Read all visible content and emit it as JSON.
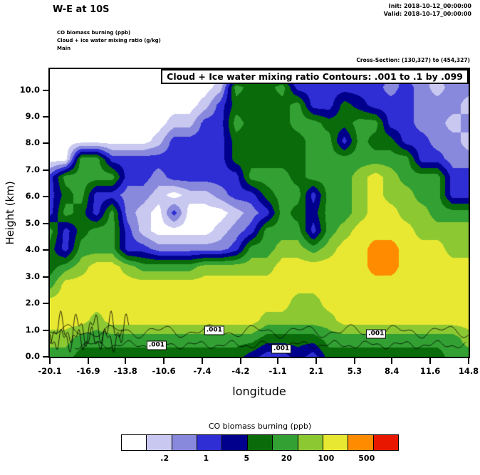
{
  "header": {
    "title": "W-E at 10S",
    "init_label": "Init: 2018-10-12_00:00:00",
    "valid_label": "Valid: 2018-10-17_00:00:00",
    "info_lines": [
      "CO biomass burning   (ppb)",
      "Cloud + ice water mixing ratio   (g/kg)",
      "Main"
    ],
    "cross_section": "Cross-Section: (130,327) to (454,327)"
  },
  "chart_data": {
    "type": "heatmap",
    "title": "Cloud + Ice water mixing ratio Contours: .001 to .1 by .099",
    "xlabel": "longitude",
    "ylabel": "Height (km)",
    "xlim": [
      -20.1,
      14.8
    ],
    "ylim": [
      0,
      10.79
    ],
    "x_ticks": [
      "-20.1",
      "-16.9",
      "-13.8",
      "-10.6",
      "-7.4",
      "-4.2",
      "-1.1",
      "2.1",
      "5.3",
      "8.4",
      "11.6",
      "14.8"
    ],
    "x_tick_values": [
      -20.1,
      -16.9,
      -13.8,
      -10.6,
      -7.4,
      -4.2,
      -1.1,
      2.1,
      5.3,
      8.4,
      11.6,
      14.8
    ],
    "y_ticks": [
      "0.0",
      "1.0",
      "2.0",
      "3.0",
      "4.0",
      "5.0",
      "6.0",
      "7.0",
      "8.0",
      "9.0",
      "10.0"
    ],
    "y_tick_values": [
      0,
      1,
      2,
      3,
      4,
      5,
      6,
      7,
      8,
      9,
      10
    ],
    "palette": [
      "#ffffff",
      "#c8c8f0",
      "#8888dc",
      "#2e2ed4",
      "#00008c",
      "#0a6b0a",
      "#32a032",
      "#8cc832",
      "#e8e832",
      "#ff8c00",
      "#e81800"
    ],
    "grid": {
      "note": "CO biomass burning field as palette level indices; rows bottom-up from 0 km to ~10.6 km, cols from lon -20.1 to 14.8",
      "rows": 17,
      "cols": 28,
      "values": [
        [
          6,
          6,
          5,
          5,
          5,
          5,
          5,
          5,
          5,
          5,
          5,
          5,
          5,
          4,
          3,
          3,
          4,
          3,
          5,
          5,
          5,
          5,
          5,
          5,
          5,
          5,
          6,
          6
        ],
        [
          7,
          7,
          6,
          6,
          6,
          6,
          6,
          6,
          6,
          6,
          6,
          6,
          6,
          6,
          5,
          5,
          5,
          5,
          6,
          6,
          6,
          6,
          6,
          6,
          6,
          6,
          6,
          7
        ],
        [
          8,
          8,
          8,
          7,
          8,
          8,
          8,
          8,
          8,
          8,
          8,
          8,
          8,
          8,
          7,
          7,
          7,
          7,
          7,
          8,
          8,
          8,
          8,
          8,
          8,
          8,
          8,
          8
        ],
        [
          8,
          8,
          8,
          8,
          8,
          8,
          8,
          8,
          8,
          8,
          8,
          8,
          8,
          8,
          8,
          8,
          7,
          7,
          8,
          8,
          8,
          8,
          8,
          8,
          8,
          8,
          8,
          8
        ],
        [
          6,
          8,
          8,
          8,
          8,
          8,
          8,
          8,
          8,
          8,
          8,
          8,
          8,
          8,
          8,
          8,
          8,
          8,
          8,
          8,
          8,
          8,
          8,
          8,
          8,
          8,
          8,
          8
        ],
        [
          5,
          6,
          7,
          8,
          8,
          7,
          6,
          6,
          6,
          6,
          7,
          7,
          7,
          7,
          7,
          8,
          8,
          8,
          8,
          8,
          8,
          9,
          9,
          8,
          8,
          8,
          8,
          8
        ],
        [
          5,
          3,
          6,
          6,
          6,
          3,
          3,
          2,
          2,
          2,
          2,
          2,
          3,
          6,
          6,
          7,
          7,
          6,
          7,
          8,
          8,
          9,
          9,
          8,
          8,
          8,
          7,
          7
        ],
        [
          6,
          3,
          5,
          6,
          6,
          3,
          1,
          0,
          0,
          0,
          0,
          1,
          2,
          3,
          6,
          6,
          6,
          3,
          6,
          7,
          8,
          8,
          8,
          8,
          7,
          7,
          7,
          7
        ],
        [
          3,
          6,
          5,
          3,
          6,
          2,
          1,
          0,
          3,
          0,
          0,
          0,
          1,
          2,
          3,
          6,
          5,
          4,
          6,
          6,
          7,
          8,
          8,
          7,
          7,
          6,
          6,
          6
        ],
        [
          3,
          5,
          6,
          3,
          3,
          2,
          2,
          1,
          0,
          1,
          1,
          2,
          3,
          3,
          5,
          6,
          6,
          3,
          6,
          6,
          7,
          8,
          7,
          7,
          6,
          6,
          3,
          3
        ],
        [
          3,
          6,
          6,
          6,
          6,
          3,
          3,
          2,
          3,
          3,
          3,
          3,
          3,
          6,
          6,
          6,
          5,
          6,
          6,
          6,
          7,
          8,
          7,
          6,
          6,
          6,
          3,
          3
        ],
        [
          0,
          0,
          6,
          6,
          3,
          3,
          3,
          3,
          3,
          3,
          3,
          3,
          5,
          5,
          5,
          5,
          5,
          6,
          6,
          6,
          6,
          6,
          6,
          6,
          3,
          3,
          2,
          2
        ],
        [
          0,
          0,
          0,
          0,
          0,
          0,
          0,
          1,
          3,
          3,
          3,
          3,
          5,
          5,
          5,
          5,
          5,
          6,
          6,
          3,
          6,
          5,
          5,
          3,
          3,
          2,
          2,
          1
        ],
        [
          0,
          0,
          0,
          0,
          0,
          0,
          0,
          0,
          1,
          1,
          3,
          3,
          6,
          5,
          5,
          5,
          6,
          6,
          5,
          5,
          6,
          6,
          3,
          3,
          2,
          2,
          1,
          2
        ],
        [
          0,
          0,
          0,
          0,
          0,
          0,
          0,
          0,
          0,
          0,
          1,
          3,
          5,
          5,
          5,
          5,
          6,
          3,
          3,
          5,
          4,
          3,
          3,
          3,
          2,
          2,
          2,
          1
        ],
        [
          0,
          0,
          0,
          0,
          0,
          0,
          0,
          0,
          0,
          0,
          0,
          1,
          6,
          5,
          5,
          6,
          3,
          3,
          3,
          3,
          3,
          3,
          2,
          3,
          2,
          1,
          2,
          2
        ],
        [
          0,
          0,
          0,
          0,
          0,
          0,
          0,
          0,
          0,
          0,
          0,
          0,
          1,
          6,
          3,
          3,
          1,
          3,
          3,
          3,
          2,
          3,
          3,
          2,
          1,
          2,
          2,
          3
        ]
      ]
    },
    "contour_lines": [
      {
        "km": 0.95,
        "x_start": -20.1,
        "x_end": 14.8,
        "amp": 0.16,
        "freq": 1.6
      },
      {
        "km": 0.45,
        "x_start": -18.0,
        "x_end": 14.6,
        "amp": 0.1,
        "freq": 2.2
      },
      {
        "km": 1.05,
        "x_start": -20.1,
        "x_end": -13.5,
        "amp": 0.42,
        "freq": 4.5
      },
      {
        "km": 0.65,
        "x_start": -20.1,
        "x_end": -14.0,
        "amp": 0.3,
        "freq": 5.2
      }
    ],
    "contour_labels": [
      {
        "text": ".001",
        "lon": -11.2,
        "km": 0.42
      },
      {
        "text": ".001",
        "lon": -6.4,
        "km": 1.0
      },
      {
        "text": ".001",
        "lon": -0.8,
        "km": 0.3
      },
      {
        "text": ".001",
        "lon": 7.1,
        "km": 0.85
      }
    ],
    "colorbar": {
      "title": "CO biomass burning  (ppb)",
      "colors": [
        "#ffffff",
        "#c8c8f0",
        "#8888dc",
        "#2e2ed4",
        "#00008c",
        "#0a6b0a",
        "#32a032",
        "#8cc832",
        "#e8e832",
        "#ff8c00",
        "#e81800"
      ],
      "ticks": [
        {
          "label": ".2",
          "pos": 15.7
        },
        {
          "label": "1",
          "pos": 30.6
        },
        {
          "label": "5",
          "pos": 45.2
        },
        {
          "label": "20",
          "pos": 59.6
        },
        {
          "label": "100",
          "pos": 73.8
        },
        {
          "label": "500",
          "pos": 88.4
        }
      ]
    }
  }
}
